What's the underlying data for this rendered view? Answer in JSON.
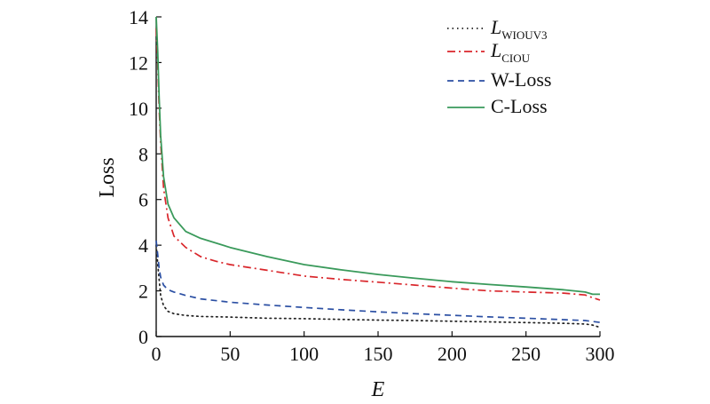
{
  "chart_data": {
    "type": "line",
    "xlabel": "E",
    "ylabel": "Loss",
    "xlim": [
      0,
      300
    ],
    "ylim": [
      0,
      14
    ],
    "x_ticks": [
      0,
      50,
      100,
      150,
      200,
      250,
      300
    ],
    "y_ticks": [
      0,
      2,
      4,
      6,
      8,
      10,
      12,
      14
    ],
    "x_tick_labels": [
      "0",
      "50",
      "100",
      "150",
      "200",
      "250",
      "300"
    ],
    "y_tick_labels": [
      "0",
      "2",
      "4",
      "6",
      "8",
      "10",
      "12",
      "14"
    ],
    "grid": false,
    "legend_position": "top-right",
    "series": [
      {
        "name_main": "L",
        "name_sub": "WIOUV3",
        "color": "#222222",
        "style": "dotted",
        "points": [
          [
            0,
            4.0
          ],
          [
            1,
            3.2
          ],
          [
            2,
            2.5
          ],
          [
            3,
            1.8
          ],
          [
            5,
            1.35
          ],
          [
            8,
            1.1
          ],
          [
            12,
            1.0
          ],
          [
            20,
            0.92
          ],
          [
            30,
            0.88
          ],
          [
            50,
            0.85
          ],
          [
            75,
            0.8
          ],
          [
            100,
            0.78
          ],
          [
            125,
            0.75
          ],
          [
            150,
            0.72
          ],
          [
            175,
            0.7
          ],
          [
            200,
            0.67
          ],
          [
            225,
            0.64
          ],
          [
            250,
            0.61
          ],
          [
            275,
            0.58
          ],
          [
            290,
            0.55
          ],
          [
            295,
            0.5
          ],
          [
            300,
            0.4
          ]
        ]
      },
      {
        "name_main": "L",
        "name_sub": "CIOU",
        "color": "#d9262b",
        "style": "dashdot",
        "points": [
          [
            0,
            13.5
          ],
          [
            1,
            12.0
          ],
          [
            2,
            10.0
          ],
          [
            3,
            8.5
          ],
          [
            5,
            6.5
          ],
          [
            8,
            5.2
          ],
          [
            12,
            4.4
          ],
          [
            20,
            3.9
          ],
          [
            30,
            3.5
          ],
          [
            40,
            3.3
          ],
          [
            50,
            3.15
          ],
          [
            75,
            2.9
          ],
          [
            100,
            2.65
          ],
          [
            125,
            2.5
          ],
          [
            150,
            2.38
          ],
          [
            175,
            2.25
          ],
          [
            200,
            2.12
          ],
          [
            225,
            2.0
          ],
          [
            250,
            1.95
          ],
          [
            275,
            1.9
          ],
          [
            290,
            1.82
          ],
          [
            295,
            1.7
          ],
          [
            300,
            1.6
          ]
        ]
      },
      {
        "name_main": "W-Loss",
        "name_sub": "",
        "color": "#2b4fa3",
        "style": "dashed",
        "points": [
          [
            0,
            4.2
          ],
          [
            1,
            3.6
          ],
          [
            2,
            3.0
          ],
          [
            3,
            2.6
          ],
          [
            5,
            2.25
          ],
          [
            8,
            2.05
          ],
          [
            12,
            1.95
          ],
          [
            20,
            1.8
          ],
          [
            30,
            1.65
          ],
          [
            50,
            1.5
          ],
          [
            75,
            1.38
          ],
          [
            100,
            1.27
          ],
          [
            125,
            1.17
          ],
          [
            150,
            1.08
          ],
          [
            175,
            1.0
          ],
          [
            200,
            0.93
          ],
          [
            225,
            0.86
          ],
          [
            250,
            0.8
          ],
          [
            275,
            0.74
          ],
          [
            290,
            0.7
          ],
          [
            300,
            0.62
          ]
        ]
      },
      {
        "name_main": "C-Loss",
        "name_sub": "",
        "color": "#3a9a5b",
        "style": "solid",
        "points": [
          [
            0,
            14.0
          ],
          [
            1,
            12.5
          ],
          [
            2,
            10.5
          ],
          [
            3,
            8.8
          ],
          [
            5,
            7.0
          ],
          [
            8,
            5.8
          ],
          [
            12,
            5.2
          ],
          [
            20,
            4.6
          ],
          [
            30,
            4.3
          ],
          [
            50,
            3.9
          ],
          [
            75,
            3.5
          ],
          [
            100,
            3.15
          ],
          [
            125,
            2.92
          ],
          [
            150,
            2.72
          ],
          [
            175,
            2.55
          ],
          [
            200,
            2.4
          ],
          [
            225,
            2.28
          ],
          [
            250,
            2.17
          ],
          [
            275,
            2.05
          ],
          [
            290,
            1.95
          ],
          [
            295,
            1.85
          ],
          [
            300,
            1.85
          ]
        ]
      }
    ]
  }
}
